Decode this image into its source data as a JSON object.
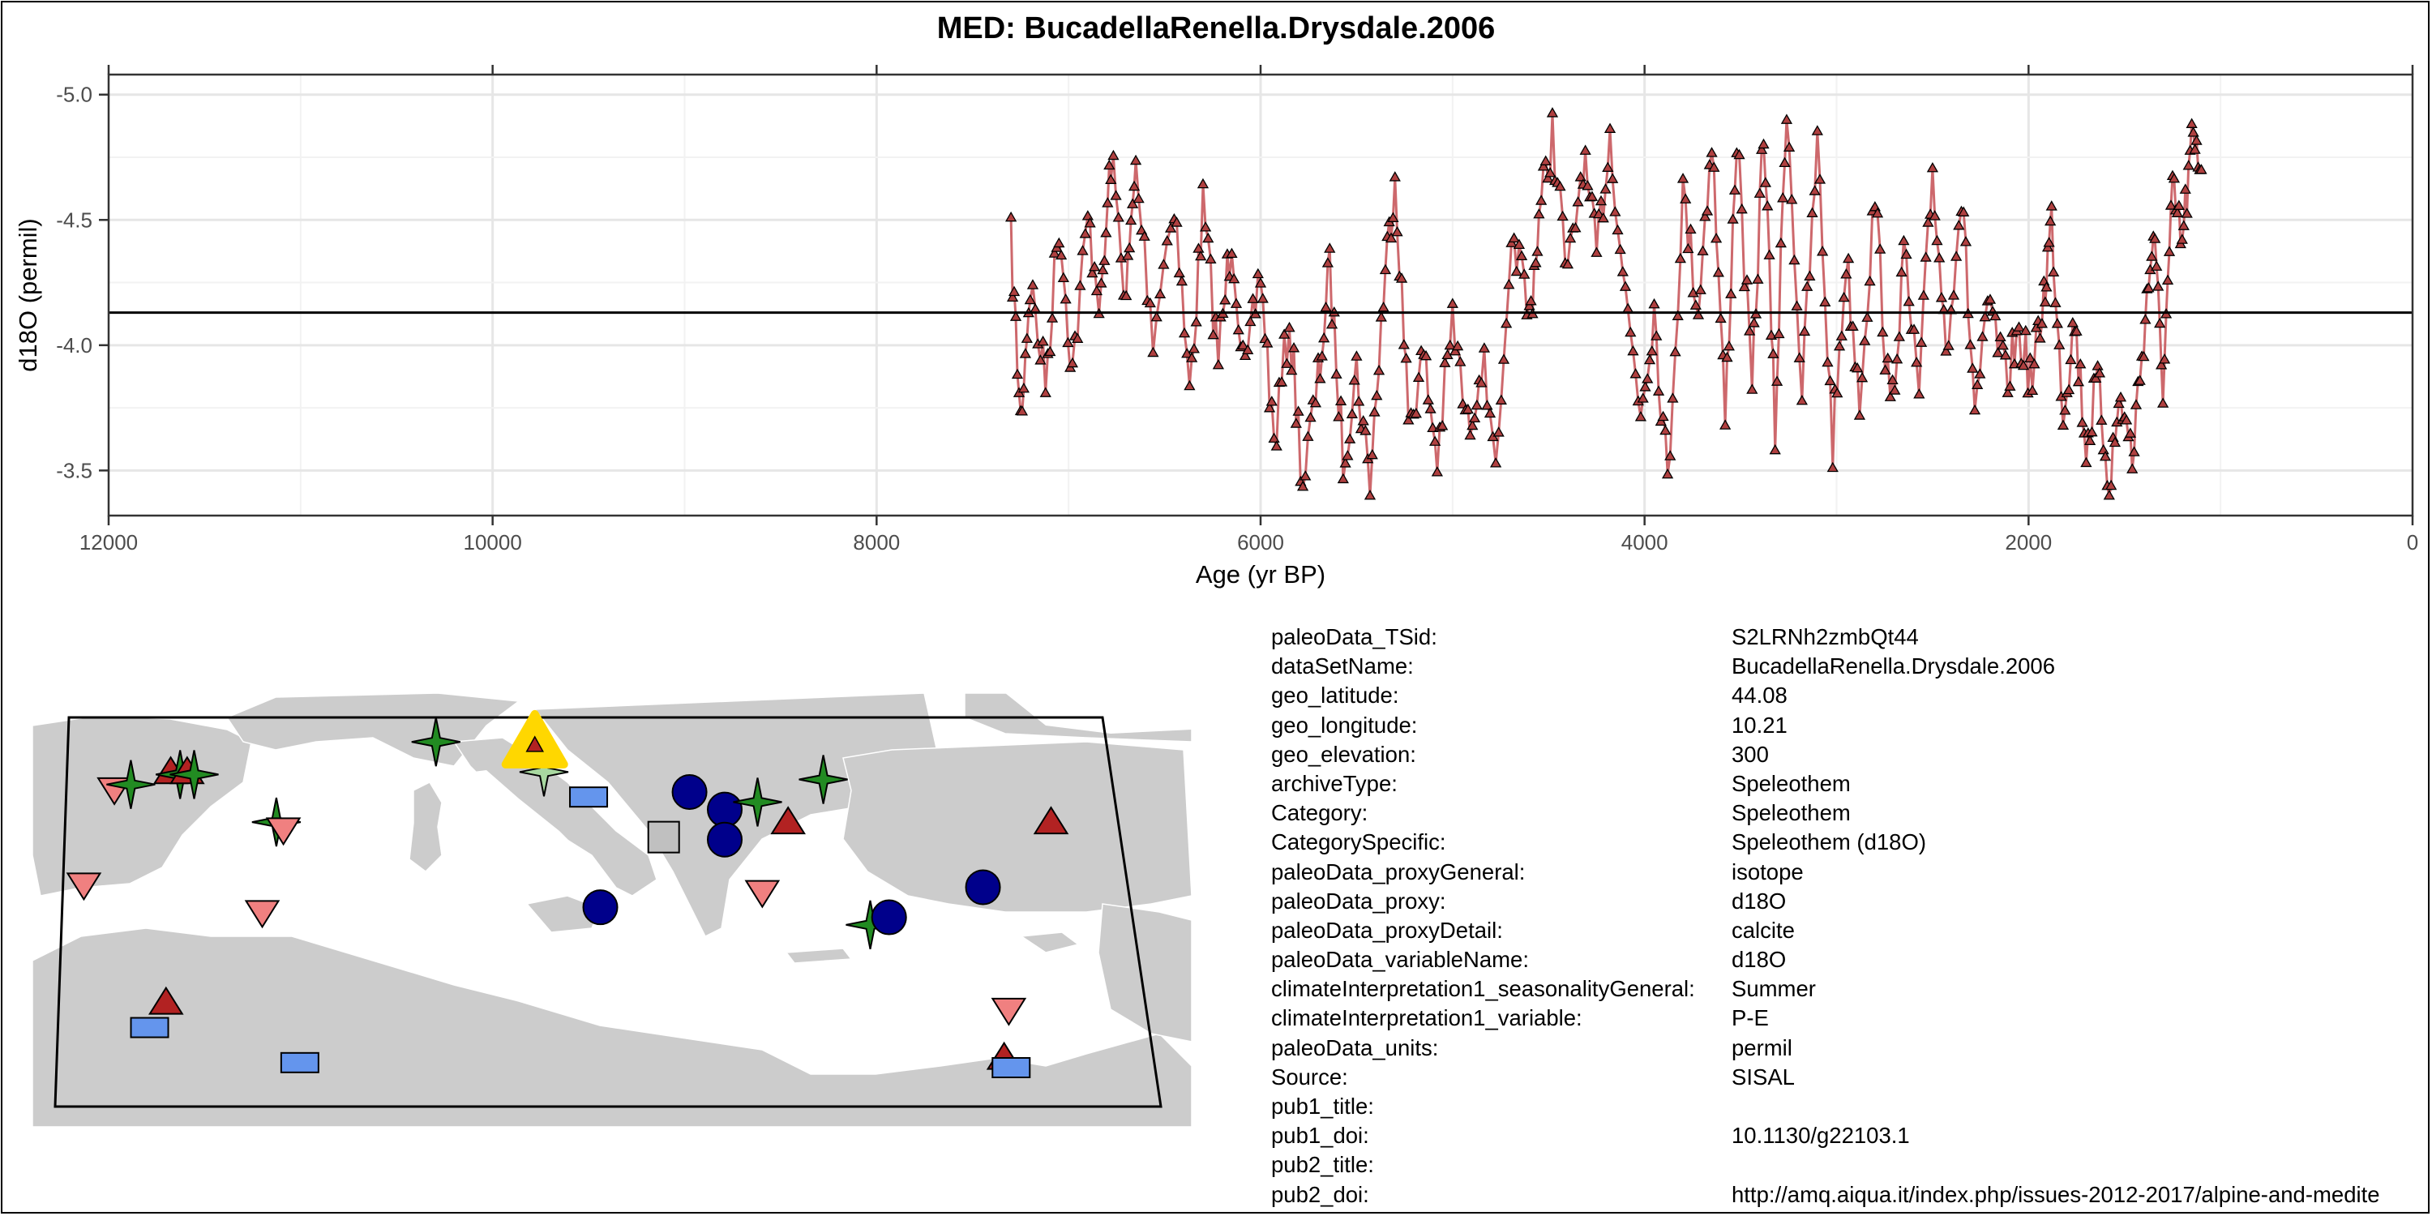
{
  "title": "MED: BucadellaRenella.Drysdale.2006",
  "chart_data": {
    "type": "line",
    "xlabel": "Age (yr BP)",
    "ylabel": "d18O (permil)",
    "x_reversed": true,
    "xlim": [
      12000,
      0
    ],
    "ylim": [
      -3.32,
      -5.08
    ],
    "xticks": [
      12000,
      10000,
      8000,
      6000,
      4000,
      2000,
      0
    ],
    "yticks": [
      -5.0,
      -4.5,
      -4.0,
      -3.5
    ],
    "reference_line": -4.13,
    "line_color": "#c44e52",
    "marker": "triangle",
    "series_anchors": [
      [
        7300,
        -4.4
      ],
      [
        7250,
        -3.7
      ],
      [
        7200,
        -4.25
      ],
      [
        7120,
        -3.85
      ],
      [
        7050,
        -4.5
      ],
      [
        6980,
        -3.9
      ],
      [
        6900,
        -4.5
      ],
      [
        6830,
        -4.15
      ],
      [
        6780,
        -4.75
      ],
      [
        6700,
        -4.2
      ],
      [
        6650,
        -4.7
      ],
      [
        6560,
        -4.05
      ],
      [
        6450,
        -4.6
      ],
      [
        6370,
        -3.8
      ],
      [
        6300,
        -4.55
      ],
      [
        6220,
        -3.95
      ],
      [
        6150,
        -4.45
      ],
      [
        6080,
        -3.85
      ],
      [
        6000,
        -4.3
      ],
      [
        5930,
        -3.6
      ],
      [
        5850,
        -4.1
      ],
      [
        5780,
        -3.45
      ],
      [
        5700,
        -3.85
      ],
      [
        5640,
        -4.3
      ],
      [
        5570,
        -3.55
      ],
      [
        5500,
        -3.9
      ],
      [
        5430,
        -3.45
      ],
      [
        5360,
        -4.2
      ],
      [
        5300,
        -4.7
      ],
      [
        5230,
        -3.7
      ],
      [
        5150,
        -3.95
      ],
      [
        5080,
        -3.55
      ],
      [
        5000,
        -4.1
      ],
      [
        4920,
        -3.65
      ],
      [
        4850,
        -3.95
      ],
      [
        4760,
        -3.55
      ],
      [
        4680,
        -4.45
      ],
      [
        4600,
        -4.1
      ],
      [
        4550,
        -4.5
      ],
      [
        4480,
        -4.85
      ],
      [
        4400,
        -4.25
      ],
      [
        4320,
        -4.75
      ],
      [
        4250,
        -4.35
      ],
      [
        4180,
        -4.85
      ],
      [
        4100,
        -4.2
      ],
      [
        4020,
        -3.75
      ],
      [
        3950,
        -4.15
      ],
      [
        3880,
        -3.45
      ],
      [
        3800,
        -4.6
      ],
      [
        3720,
        -4.15
      ],
      [
        3650,
        -4.85
      ],
      [
        3580,
        -3.7
      ],
      [
        3520,
        -4.85
      ],
      [
        3440,
        -3.8
      ],
      [
        3380,
        -4.9
      ],
      [
        3320,
        -3.65
      ],
      [
        3260,
        -5.0
      ],
      [
        3180,
        -3.8
      ],
      [
        3100,
        -4.8
      ],
      [
        3020,
        -3.6
      ],
      [
        2950,
        -4.35
      ],
      [
        2880,
        -3.8
      ],
      [
        2800,
        -4.6
      ],
      [
        2720,
        -3.7
      ],
      [
        2650,
        -4.35
      ],
      [
        2570,
        -3.8
      ],
      [
        2500,
        -4.7
      ],
      [
        2430,
        -4.0
      ],
      [
        2350,
        -4.6
      ],
      [
        2280,
        -3.75
      ],
      [
        2200,
        -4.15
      ],
      [
        2120,
        -3.85
      ],
      [
        2050,
        -4.05
      ],
      [
        1980,
        -3.85
      ],
      [
        1920,
        -4.2
      ],
      [
        1880,
        -4.5
      ],
      [
        1820,
        -3.75
      ],
      [
        1760,
        -4.1
      ],
      [
        1700,
        -3.6
      ],
      [
        1640,
        -3.85
      ],
      [
        1580,
        -3.45
      ],
      [
        1520,
        -3.8
      ],
      [
        1460,
        -3.55
      ],
      [
        1400,
        -4.05
      ],
      [
        1350,
        -4.45
      ],
      [
        1300,
        -3.85
      ],
      [
        1250,
        -4.6
      ],
      [
        1200,
        -4.4
      ],
      [
        1150,
        -4.8
      ],
      [
        1100,
        -4.7
      ]
    ]
  },
  "map": {
    "land_color": "#cccccc",
    "sea_color": "#ffffff",
    "selected_marker_color": "#ffd700",
    "symbols": [
      {
        "shape": "tri-down",
        "color": "#f08080",
        "lon": -9.0,
        "lat": 38.5
      },
      {
        "shape": "tri-down",
        "color": "#f08080",
        "lon": -7.7,
        "lat": 42.3
      },
      {
        "shape": "star4",
        "color": "#228b22",
        "lon": -7.0,
        "lat": 42.5
      },
      {
        "shape": "tri-up",
        "color": "#b22222",
        "lon": -5.3,
        "lat": 43.0
      },
      {
        "shape": "star4",
        "color": "#228b22",
        "lon": -4.9,
        "lat": 42.9
      },
      {
        "shape": "tri-up",
        "color": "#b22222",
        "lon": -4.6,
        "lat": 43.0
      },
      {
        "shape": "star4",
        "color": "#228b22",
        "lon": -4.3,
        "lat": 42.9
      },
      {
        "shape": "star4",
        "color": "#228b22",
        "lon": -0.8,
        "lat": 41.0
      },
      {
        "shape": "tri-down",
        "color": "#f08080",
        "lon": -0.5,
        "lat": 40.7
      },
      {
        "shape": "tri-down",
        "color": "#f08080",
        "lon": -1.4,
        "lat": 37.4
      },
      {
        "shape": "star4",
        "color": "#228b22",
        "lon": 6.0,
        "lat": 44.2
      },
      {
        "shape": "star4",
        "color": "#a8d8a0",
        "lon": 10.6,
        "lat": 43.0
      },
      {
        "shape": "rect",
        "color": "#6495ed",
        "lon": 12.5,
        "lat": 42.0
      },
      {
        "shape": "circle",
        "color": "#00008b",
        "lon": 16.8,
        "lat": 42.2
      },
      {
        "shape": "circle",
        "color": "#00008b",
        "lon": 18.3,
        "lat": 41.5
      },
      {
        "shape": "circle",
        "color": "#00008b",
        "lon": 18.3,
        "lat": 40.3
      },
      {
        "shape": "rect",
        "color": "#c0c0c0",
        "lon": 15.7,
        "lat": 40.4
      },
      {
        "shape": "circle",
        "color": "#00008b",
        "lon": 13.0,
        "lat": 37.6
      },
      {
        "shape": "star4",
        "color": "#228b22",
        "lon": 19.7,
        "lat": 41.8
      },
      {
        "shape": "tri-up",
        "color": "#b22222",
        "lon": 21.0,
        "lat": 41.0
      },
      {
        "shape": "star4",
        "color": "#228b22",
        "lon": 22.5,
        "lat": 42.7
      },
      {
        "shape": "tri-down",
        "color": "#f08080",
        "lon": 19.9,
        "lat": 38.2
      },
      {
        "shape": "star4",
        "color": "#228b22",
        "lon": 24.5,
        "lat": 36.9
      },
      {
        "shape": "circle",
        "color": "#00008b",
        "lon": 25.3,
        "lat": 37.2
      },
      {
        "shape": "circle",
        "color": "#00008b",
        "lon": 29.3,
        "lat": 38.4
      },
      {
        "shape": "tri-up",
        "color": "#b22222",
        "lon": 32.2,
        "lat": 41.0
      },
      {
        "shape": "tri-down",
        "color": "#f08080",
        "lon": 30.4,
        "lat": 33.5
      },
      {
        "shape": "tri-up",
        "color": "#b22222",
        "lon": 30.2,
        "lat": 31.6
      },
      {
        "shape": "rect",
        "color": "#6495ed",
        "lon": 30.5,
        "lat": 31.2
      },
      {
        "shape": "tri-up",
        "color": "#b22222",
        "lon": -5.5,
        "lat": 33.8
      },
      {
        "shape": "rect",
        "color": "#6495ed",
        "lon": -6.2,
        "lat": 32.8
      },
      {
        "shape": "rect",
        "color": "#6495ed",
        "lon": 0.2,
        "lat": 31.4
      }
    ],
    "selected": {
      "lon": 10.21,
      "lat": 44.08
    }
  },
  "metadata": [
    {
      "key": "paleoData_TSid:",
      "value": "S2LRNh2zmbQt44"
    },
    {
      "key": "dataSetName:",
      "value": "BucadellaRenella.Drysdale.2006"
    },
    {
      "key": "geo_latitude:",
      "value": "44.08"
    },
    {
      "key": "geo_longitude:",
      "value": "10.21"
    },
    {
      "key": "geo_elevation:",
      "value": "300"
    },
    {
      "key": "archiveType:",
      "value": "Speleothem"
    },
    {
      "key": "Category:",
      "value": "Speleothem"
    },
    {
      "key": "CategorySpecific:",
      "value": "Speleothem (d18O)"
    },
    {
      "key": "paleoData_proxyGeneral:",
      "value": "isotope"
    },
    {
      "key": "paleoData_proxy:",
      "value": "d18O"
    },
    {
      "key": "paleoData_proxyDetail:",
      "value": "calcite"
    },
    {
      "key": "paleoData_variableName:",
      "value": "d18O"
    },
    {
      "key": "climateInterpretation1_seasonalityGeneral:",
      "value": "Summer"
    },
    {
      "key": "climateInterpretation1_variable:",
      "value": "P-E"
    },
    {
      "key": "paleoData_units:",
      "value": "permil"
    },
    {
      "key": "Source:",
      "value": "SISAL"
    },
    {
      "key": "pub1_title:",
      "value": ""
    },
    {
      "key": "pub1_doi:",
      "value": "10.1130/g22103.1"
    },
    {
      "key": "pub2_title:",
      "value": ""
    },
    {
      "key": "pub2_doi:",
      "value": "http://amq.aiqua.it/index.php/issues-2012-2017/alpine-and-medite"
    }
  ]
}
